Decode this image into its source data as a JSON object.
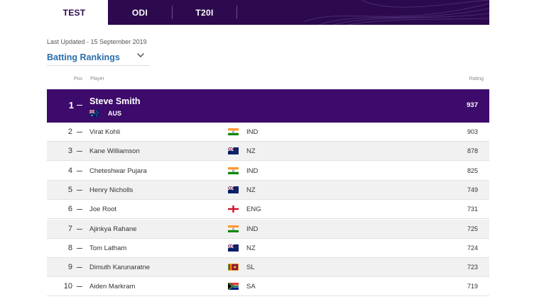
{
  "tabs": [
    {
      "label": "TEST",
      "active": true
    },
    {
      "label": "ODI",
      "active": false
    },
    {
      "label": "T20I",
      "active": false
    }
  ],
  "last_updated": "Last Updated - 15 September 2019",
  "rankings_select": {
    "label": "Batting Rankings"
  },
  "columns": {
    "pos": "Pos",
    "player": "Player",
    "rating": "Rating"
  },
  "top_player": {
    "pos": "1",
    "name": "Steve Smith",
    "country": "AUS",
    "flag": "australia-flag",
    "rating": "937"
  },
  "rows": [
    {
      "pos": "2",
      "name": "Virat Kohli",
      "country": "IND",
      "flag": "india-flag",
      "rating": "903"
    },
    {
      "pos": "3",
      "name": "Kane Williamson",
      "country": "NZ",
      "flag": "new-zealand-flag",
      "rating": "878"
    },
    {
      "pos": "4",
      "name": "Cheteshwar Pujara",
      "country": "IND",
      "flag": "india-flag",
      "rating": "825"
    },
    {
      "pos": "5",
      "name": "Henry Nicholls",
      "country": "NZ",
      "flag": "new-zealand-flag",
      "rating": "749"
    },
    {
      "pos": "6",
      "name": "Joe Root",
      "country": "ENG",
      "flag": "england-flag",
      "rating": "731"
    },
    {
      "pos": "7",
      "name": "Ajinkya Rahane",
      "country": "IND",
      "flag": "india-flag",
      "rating": "725"
    },
    {
      "pos": "8",
      "name": "Tom Latham",
      "country": "NZ",
      "flag": "new-zealand-flag",
      "rating": "724"
    },
    {
      "pos": "9",
      "name": "Dimuth Karunaratne",
      "country": "SL",
      "flag": "sri-lanka-flag",
      "rating": "723"
    },
    {
      "pos": "10",
      "name": "Aiden Markram",
      "country": "SA",
      "flag": "south-africa-flag",
      "rating": "719"
    }
  ],
  "colors": {
    "header_purple": "#2c0a4d",
    "top_row_purple": "#3d0b6b",
    "link_blue": "#2a6ead",
    "row_shade": "#f1f1f1"
  }
}
